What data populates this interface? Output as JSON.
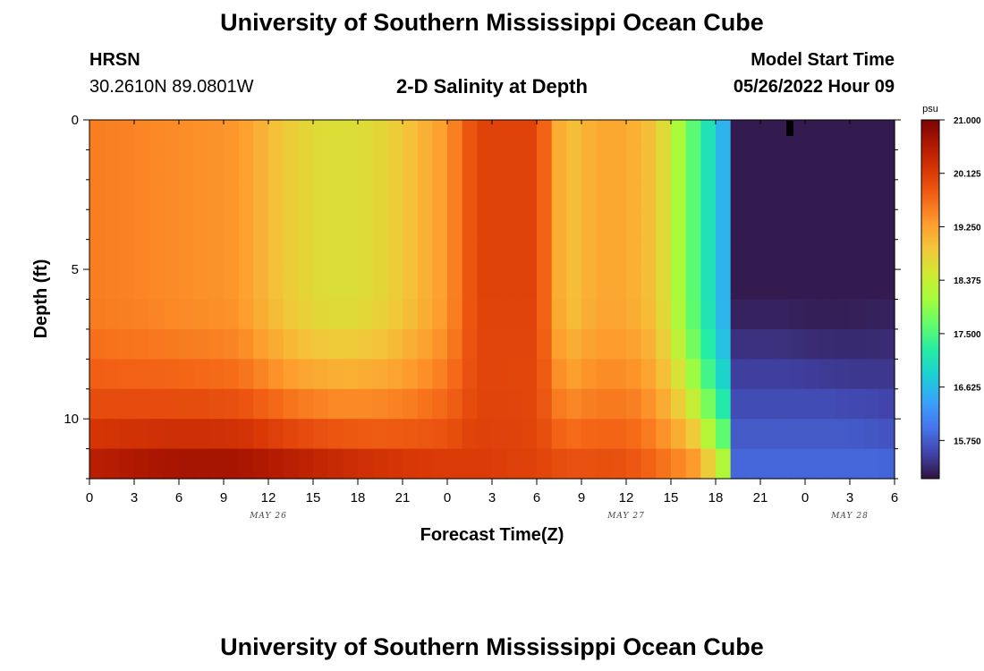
{
  "header": {
    "title": "University of Southern Mississippi Ocean Cube",
    "station_id": "HRSN",
    "station_coords": "30.2610N  89.0801W",
    "plot_title": "2-D Salinity at Depth",
    "model_start_label": "Model Start Time",
    "model_start_value": "05/26/2022 Hour 09"
  },
  "footer": {
    "title": "University of Southern Mississippi Ocean Cube"
  },
  "chart_data": {
    "type": "heatmap",
    "title": "2-D Salinity at Depth",
    "xlabel": "Forecast Time(Z)",
    "ylabel": "Depth (ft)",
    "x_hours_range": [
      0,
      54
    ],
    "x_tick_labels": [
      "0",
      "3",
      "6",
      "9",
      "12",
      "15",
      "18",
      "21",
      "0",
      "3",
      "6",
      "9",
      "12",
      "15",
      "18",
      "21",
      "0",
      "3",
      "6"
    ],
    "date_labels": [
      "MAY 26",
      "MAY 27",
      "MAY 28"
    ],
    "y_range_ft": [
      0,
      12
    ],
    "y_ticks": [
      "0",
      "5",
      "10"
    ],
    "colorbar": {
      "unit": "psu",
      "range": [
        15.125,
        21.0
      ],
      "labels": [
        "21.000",
        "20.125",
        "19.250",
        "18.375",
        "17.500",
        "16.625",
        "15.750"
      ],
      "colormap": [
        "#30123b",
        "#4145ab",
        "#4675ed",
        "#39a2fc",
        "#1bcfd4",
        "#24eca6",
        "#61fc6c",
        "#a4fc3b",
        "#d1e834",
        "#f3c63a",
        "#fe9b2d",
        "#f36315",
        "#d93806",
        "#b11901",
        "#7a0402"
      ]
    },
    "salinity_description": "Surface to ~6 ft: 19.0-19.6 psu in hours 0-12, fresher 18.6-19.0 near surface hours 12-24, saltier column ~20.0 psu at hours 26-30, 18.8-19.4 hours 32-38, sharp freshening from ~18 psu at hour 39 to ~15.2 psu by hours 44-54. Bottom layers (8-12 ft) 20.0-20.9 psu through hour 36, then dropping to ~16 psu after hour 42."
  }
}
